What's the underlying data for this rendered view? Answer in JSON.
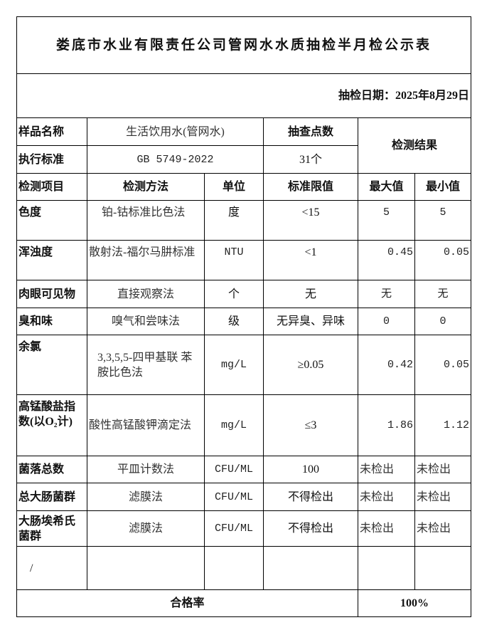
{
  "title": "娄底市水业有限责任公司管网水水质抽检半月检公示表",
  "date_label": "抽检日期：2025年8月29日",
  "header": {
    "sample_name_label": "样品名称",
    "sample_name_value": "生活饮用水(管网水)",
    "sample_points_label": "抽查点数",
    "standard_label": "执行标准",
    "standard_value": "GB 5749-2022",
    "sample_points_value": "31个",
    "result_label": "检测结果"
  },
  "columns": {
    "item": "检测项目",
    "method": "检测方法",
    "unit": "单位",
    "limit": "标准限值",
    "max": "最大值",
    "min": "最小值"
  },
  "rows": [
    {
      "item": "色度",
      "method": "铂-钴标准比色法",
      "unit": "度",
      "limit": "<15",
      "max": "5",
      "min": "5"
    },
    {
      "item": "浑浊度",
      "method": "散射法-福尔马肼标准",
      "unit": "NTU",
      "limit": "<1",
      "max": "0.45",
      "min": "0.05"
    },
    {
      "item": "肉眼可见物",
      "method": "直接观察法",
      "unit": "个",
      "limit": "无",
      "max": "无",
      "min": "无"
    },
    {
      "item": "臭和味",
      "method": "嗅气和尝味法",
      "unit": "级",
      "limit": "无异臭、异味",
      "max": "0",
      "min": "0"
    },
    {
      "item": "余氯",
      "method": "3,3,5,5-四甲基联 苯胺比色法",
      "unit": "mg/L",
      "limit": "≥0.05",
      "max": "0.42",
      "min": "0.05"
    },
    {
      "item": "高锰酸盐指 数(以O₂计)",
      "method": "酸性高锰酸钾滴定法",
      "unit": "mg/L",
      "limit": "≤3",
      "max": "1.86",
      "min": "1.12"
    },
    {
      "item": "菌落总数",
      "method": "平皿计数法",
      "unit": "CFU/ML",
      "limit": "100",
      "max": "未检出",
      "min": "未检出"
    },
    {
      "item": "总大肠菌群",
      "method": "滤膜法",
      "unit": "CFU/ML",
      "limit": "不得检出",
      "max": "未检出",
      "min": "未检出"
    },
    {
      "item": "大肠埃希氏 菌群",
      "method": "滤膜法",
      "unit": "CFU/ML",
      "limit": "不得检出",
      "max": "未检出",
      "min": "未检出"
    },
    {
      "item": "/",
      "method": "",
      "unit": "",
      "limit": "",
      "max": "",
      "min": ""
    }
  ],
  "footer": {
    "pass_rate_label": "合格率",
    "pass_rate_value": "100%"
  }
}
